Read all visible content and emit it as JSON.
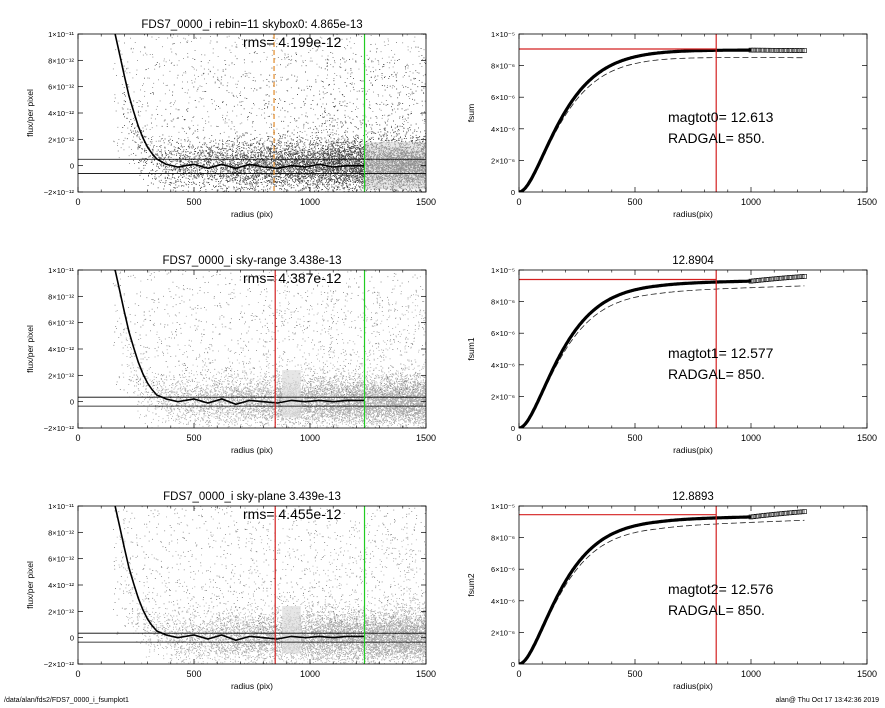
{
  "footer": {
    "left": "/data/alan/fds2/FDS7_0000_i_fsumplot1",
    "right": "alan@  Thu Oct 17 13:42:36 2019"
  },
  "colors": {
    "scatter_grey": "#9a9a9a",
    "scatter_dark": "#222222",
    "red_line": "#d42020",
    "green_line": "#22cc22",
    "orange_dashed": "#e08a2a",
    "profile": "#000000"
  },
  "chart_data": [
    {
      "type": "scatter",
      "title": "FDS7_0000_i rebin=11    skybox0:  4.865e-13",
      "annotation": "rms= 4.199e-12",
      "xlabel": "radius (pix)",
      "ylabel": "flux/per pixel",
      "xlim": [
        0,
        1500
      ],
      "ylim": [
        -2e-12,
        1e-11
      ],
      "xticks": [
        "0",
        "500",
        "1000",
        "1500"
      ],
      "yticks": [
        "−2×10⁻¹²",
        "0",
        "2×10⁻¹²",
        "4×10⁻¹²",
        "6×10⁻¹²",
        "8×10⁻¹²",
        "1×10⁻¹¹"
      ],
      "scatter_color": "dark",
      "vlines": [
        {
          "x": 845,
          "color": "orange_dashed",
          "dashed": true
        },
        {
          "x": 1235,
          "color": "green_line",
          "dashed": false
        }
      ],
      "hlines": [
        4.9e-13,
        -6e-13
      ],
      "profile": [
        [
          160,
          1e-11
        ],
        [
          180,
          8.4e-12
        ],
        [
          200,
          6.8e-12
        ],
        [
          220,
          5.3e-12
        ],
        [
          240,
          4.1e-12
        ],
        [
          260,
          3e-12
        ],
        [
          280,
          2.1e-12
        ],
        [
          300,
          1.4e-12
        ],
        [
          320,
          9e-13
        ],
        [
          340,
          5e-13
        ],
        [
          380,
          1e-13
        ],
        [
          430,
          -1e-13
        ],
        [
          500,
          1e-13
        ],
        [
          560,
          -2e-13
        ],
        [
          620,
          1e-13
        ],
        [
          680,
          -2e-13
        ],
        [
          740,
          1e-13
        ],
        [
          800,
          -1e-13
        ],
        [
          860,
          -2e-13
        ],
        [
          920,
          0
        ],
        [
          980,
          -1e-13
        ],
        [
          1040,
          1e-13
        ],
        [
          1100,
          -1e-13
        ],
        [
          1160,
          0
        ],
        [
          1235,
          0
        ]
      ]
    },
    {
      "type": "line",
      "title": "",
      "xlabel": "radius(pix)",
      "ylabel": "fsum",
      "xlim": [
        0,
        1500
      ],
      "ylim": [
        0,
        1e-05
      ],
      "xticks": [
        "0",
        "500",
        "1000",
        "1500"
      ],
      "yticks": [
        "0",
        "2×10⁻⁶",
        "4×10⁻⁶",
        "6×10⁻⁶",
        "8×10⁻⁶",
        "1×10⁻⁵"
      ],
      "curve_ymax": 9e-06,
      "curve_end_x": 1000,
      "square_end_x": 1235,
      "square_end_y": 8.95e-06,
      "dashed_ymax": 8.55e-06,
      "dashed_end_y": 8.5e-06,
      "hline_y": 9.05e-06,
      "vline_x": 850,
      "annotations": [
        "magtot0=  12.613",
        "RADGAL=    850."
      ]
    },
    {
      "type": "scatter",
      "title": "FDS7_0000_i sky-range  3.438e-13",
      "annotation": "rms= 4.387e-12",
      "xlabel": "radius (pix)",
      "ylabel": "flux/per pixel",
      "xlim": [
        0,
        1500
      ],
      "ylim": [
        -2e-12,
        1e-11
      ],
      "xticks": [
        "0",
        "500",
        "1000",
        "1500"
      ],
      "yticks": [
        "−2×10⁻¹²",
        "0",
        "2×10⁻¹²",
        "4×10⁻¹²",
        "6×10⁻¹²",
        "8×10⁻¹²",
        "1×10⁻¹¹"
      ],
      "scatter_color": "grey",
      "vlines": [
        {
          "x": 850,
          "color": "red_line",
          "dashed": false
        },
        {
          "x": 1235,
          "color": "green_line",
          "dashed": false
        }
      ],
      "hlines": [
        3.4e-13,
        -3.4e-13
      ],
      "profile": [
        [
          160,
          1e-11
        ],
        [
          180,
          8.4e-12
        ],
        [
          200,
          6.8e-12
        ],
        [
          220,
          5.3e-12
        ],
        [
          240,
          4.1e-12
        ],
        [
          260,
          3e-12
        ],
        [
          280,
          2.1e-12
        ],
        [
          300,
          1.4e-12
        ],
        [
          320,
          9e-13
        ],
        [
          340,
          5e-13
        ],
        [
          380,
          2e-13
        ],
        [
          430,
          0
        ],
        [
          500,
          2e-13
        ],
        [
          560,
          -1e-13
        ],
        [
          620,
          2e-13
        ],
        [
          680,
          -2e-13
        ],
        [
          740,
          1e-13
        ],
        [
          800,
          0
        ],
        [
          860,
          -1e-13
        ],
        [
          920,
          1e-13
        ],
        [
          980,
          0
        ],
        [
          1040,
          1e-13
        ],
        [
          1100,
          0
        ],
        [
          1160,
          1e-13
        ],
        [
          1235,
          1e-13
        ]
      ]
    },
    {
      "type": "line",
      "title": "12.8904",
      "xlabel": "radius(pix)",
      "ylabel": "fsum1",
      "xlim": [
        0,
        1500
      ],
      "ylim": [
        0,
        1e-05
      ],
      "xticks": [
        "0",
        "500",
        "1000",
        "1500"
      ],
      "yticks": [
        "0",
        "2×10⁻⁶",
        "4×10⁻⁶",
        "6×10⁻⁶",
        "8×10⁻⁶",
        "1×10⁻⁵"
      ],
      "curve_ymax": 9.2e-06,
      "curve_end_x": 1000,
      "square_end_x": 1235,
      "square_end_y": 9.6e-06,
      "dashed_ymax": 8.7e-06,
      "dashed_end_y": 9e-06,
      "hline_y": 9.4e-06,
      "vline_x": 850,
      "annotations": [
        "magtot1=  12.577",
        "RADGAL=    850."
      ]
    },
    {
      "type": "scatter",
      "title": "FDS7_0000_i sky-plane  3.439e-13",
      "annotation": "rms= 4.455e-12",
      "xlabel": "radius (pix)",
      "ylabel": "flux/per pixel",
      "xlim": [
        0,
        1500
      ],
      "ylim": [
        -2e-12,
        1e-11
      ],
      "xticks": [
        "0",
        "500",
        "1000",
        "1500"
      ],
      "yticks": [
        "−2×10⁻¹²",
        "0",
        "2×10⁻¹²",
        "4×10⁻¹²",
        "6×10⁻¹²",
        "8×10⁻¹²",
        "1×10⁻¹¹"
      ],
      "scatter_color": "grey",
      "vlines": [
        {
          "x": 850,
          "color": "red_line",
          "dashed": false
        },
        {
          "x": 1235,
          "color": "green_line",
          "dashed": false
        }
      ],
      "hlines": [
        3.4e-13,
        -3.4e-13
      ],
      "profile": [
        [
          160,
          1e-11
        ],
        [
          180,
          8.4e-12
        ],
        [
          200,
          6.8e-12
        ],
        [
          220,
          5.3e-12
        ],
        [
          240,
          4.1e-12
        ],
        [
          260,
          3e-12
        ],
        [
          280,
          2.1e-12
        ],
        [
          300,
          1.4e-12
        ],
        [
          320,
          9e-13
        ],
        [
          340,
          5e-13
        ],
        [
          380,
          2e-13
        ],
        [
          430,
          0
        ],
        [
          500,
          2e-13
        ],
        [
          560,
          -1e-13
        ],
        [
          620,
          2e-13
        ],
        [
          680,
          -2e-13
        ],
        [
          740,
          1e-13
        ],
        [
          800,
          0
        ],
        [
          860,
          -1e-13
        ],
        [
          920,
          1e-13
        ],
        [
          980,
          0
        ],
        [
          1040,
          1e-13
        ],
        [
          1100,
          0
        ],
        [
          1160,
          1e-13
        ],
        [
          1235,
          1e-13
        ]
      ]
    },
    {
      "type": "line",
      "title": "12.8893",
      "xlabel": "radius(pix)",
      "ylabel": "fsum2",
      "xlim": [
        0,
        1500
      ],
      "ylim": [
        0,
        1e-05
      ],
      "xticks": [
        "0",
        "500",
        "1000",
        "1500"
      ],
      "yticks": [
        "0",
        "2×10⁻⁶",
        "4×10⁻⁶",
        "6×10⁻⁶",
        "8×10⁻⁶",
        "1×10⁻⁵"
      ],
      "curve_ymax": 9.2e-06,
      "curve_end_x": 1000,
      "square_end_x": 1235,
      "square_end_y": 9.65e-06,
      "dashed_ymax": 8.75e-06,
      "dashed_end_y": 9.1e-06,
      "hline_y": 9.45e-06,
      "vline_x": 850,
      "annotations": [
        "magtot2=  12.576",
        "RADGAL=    850."
      ]
    }
  ]
}
